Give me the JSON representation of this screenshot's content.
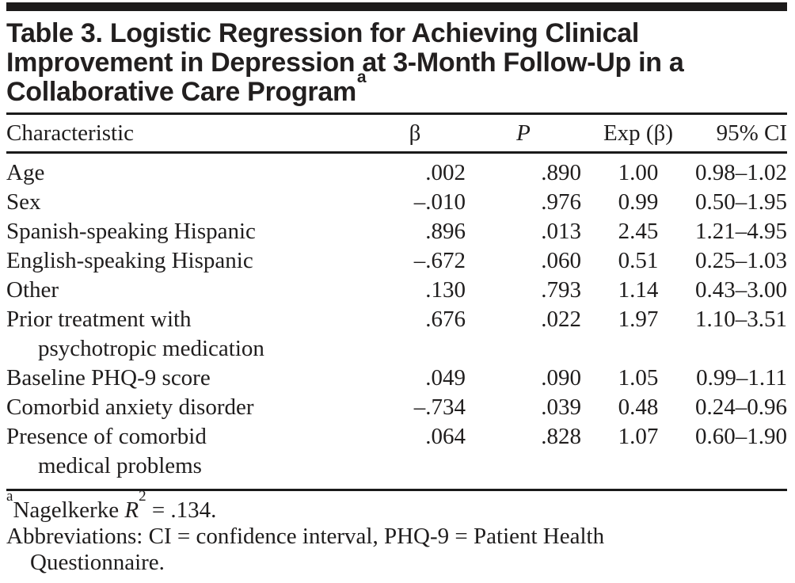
{
  "title": {
    "lines": [
      "Table 3. Logistic Regression for Achieving Clinical",
      "Improvement in Depression at 3-Month Follow-Up in a",
      "Collaborative Care Program"
    ],
    "superscript": "a"
  },
  "table": {
    "headers": {
      "characteristic": "Characteristic",
      "beta": "β",
      "p": "P",
      "exp_beta": "Exp (β)",
      "ci": "95% CI"
    },
    "rows": [
      {
        "label": "Age",
        "beta": ".002",
        "p": ".890",
        "exp_beta": "1.00",
        "ci": "0.98–1.02"
      },
      {
        "label": "Sex",
        "beta": "–.010",
        "p": ".976",
        "exp_beta": "0.99",
        "ci": "0.50–1.95"
      },
      {
        "label": "Spanish-speaking Hispanic",
        "beta": ".896",
        "p": ".013",
        "exp_beta": "2.45",
        "ci": "1.21–4.95"
      },
      {
        "label": "English-speaking Hispanic",
        "beta": "–.672",
        "p": ".060",
        "exp_beta": "0.51",
        "ci": "0.25–1.03"
      },
      {
        "label": "Other",
        "beta": ".130",
        "p": ".793",
        "exp_beta": "1.14",
        "ci": "0.43–3.00"
      },
      {
        "label": "Prior treatment with",
        "label2": "psychotropic medication",
        "beta": ".676",
        "p": ".022",
        "exp_beta": "1.97",
        "ci": "1.10–3.51"
      },
      {
        "label": "Baseline PHQ-9 score",
        "beta": ".049",
        "p": ".090",
        "exp_beta": "1.05",
        "ci": "0.99–1.11"
      },
      {
        "label": "Comorbid anxiety disorder",
        "beta": "–.734",
        "p": ".039",
        "exp_beta": "0.48",
        "ci": "0.24–0.96"
      },
      {
        "label": "Presence of comorbid",
        "label2": "medical problems",
        "beta": ".064",
        "p": ".828",
        "exp_beta": "1.07",
        "ci": "0.60–1.90"
      }
    ]
  },
  "footnotes": {
    "note_a": {
      "marker": "a",
      "text_before": "Nagelkerke ",
      "stat_symbol": "R",
      "stat_sup": "2",
      "text_after": " = .134."
    },
    "abbreviations_line1": "Abbreviations: CI = confidence interval, PHQ-9 = Patient Health",
    "abbreviations_line2": "Questionnaire."
  },
  "colors": {
    "text": "#1f1d1d",
    "rule": "#1a1a1a",
    "top_bar": "#1d1b1b",
    "background": "#ffffff"
  }
}
